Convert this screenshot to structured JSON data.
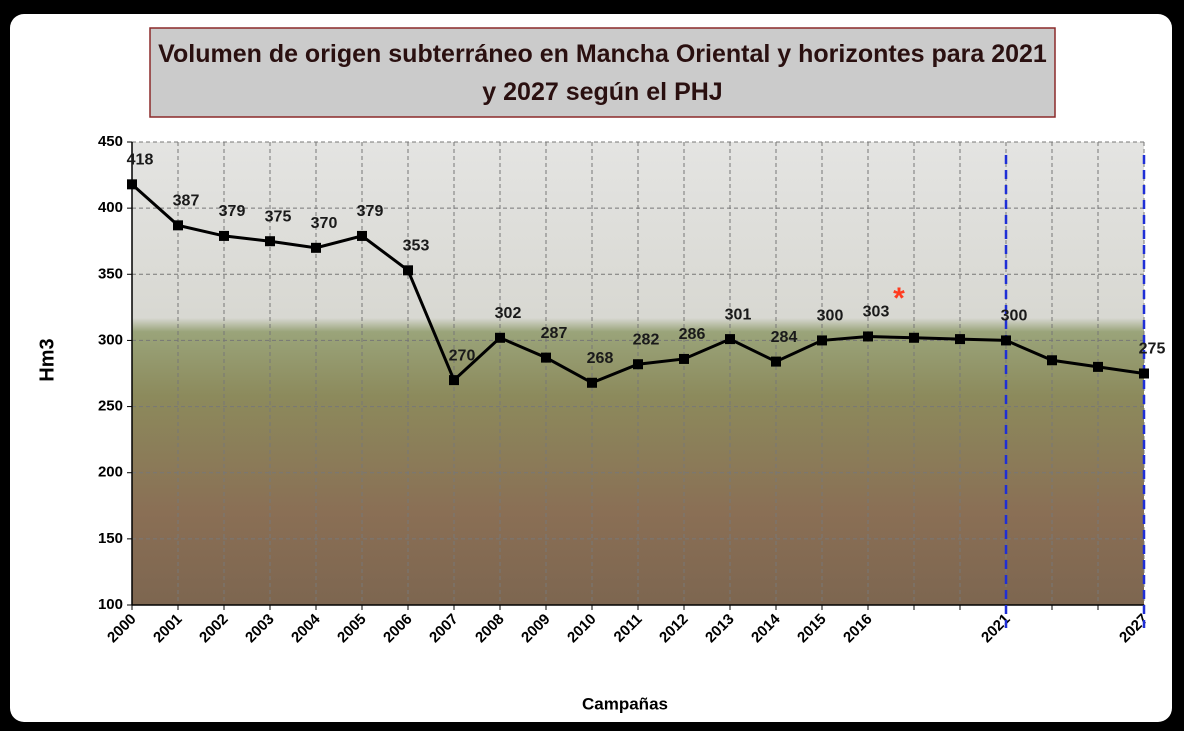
{
  "chart_data": {
    "type": "line",
    "title": "Volumen de origen subterráneo en Mancha Oriental y horizontes para 2021 y 2027 según el PHJ",
    "y_label": "Hm3",
    "x_label": "Campañas",
    "categories": [
      "2000",
      "2001",
      "2002",
      "2003",
      "2004",
      "2005",
      "2006",
      "2007",
      "2008",
      "2009",
      "2010",
      "2011",
      "2012",
      "2013",
      "2014",
      "2015",
      "2016",
      null,
      null,
      "2021",
      null,
      null,
      "2027"
    ],
    "series": [
      {
        "color": "#000000",
        "values": [
          418,
          387,
          379,
          375,
          370,
          379,
          353,
          270,
          302,
          287,
          268,
          282,
          286,
          301,
          284,
          300,
          303,
          302,
          301,
          300,
          285,
          280,
          275
        ],
        "value_labels": [
          "418",
          "387",
          "379",
          "375",
          "370",
          "379",
          "353",
          "270",
          "302",
          "287",
          "268",
          "282",
          "286",
          "301",
          "284",
          "300",
          "303",
          null,
          null,
          "300",
          null,
          null,
          "275"
        ]
      }
    ],
    "ylim": [
      100,
      450
    ],
    "yticks": [
      100,
      150,
      200,
      250,
      300,
      350,
      400,
      450
    ],
    "grid": true,
    "horizon_categories": [
      "2021",
      "2027"
    ],
    "horizon_color": "#1f2fd6",
    "annotation": "*",
    "annotation_color": "#ff3b1f"
  }
}
